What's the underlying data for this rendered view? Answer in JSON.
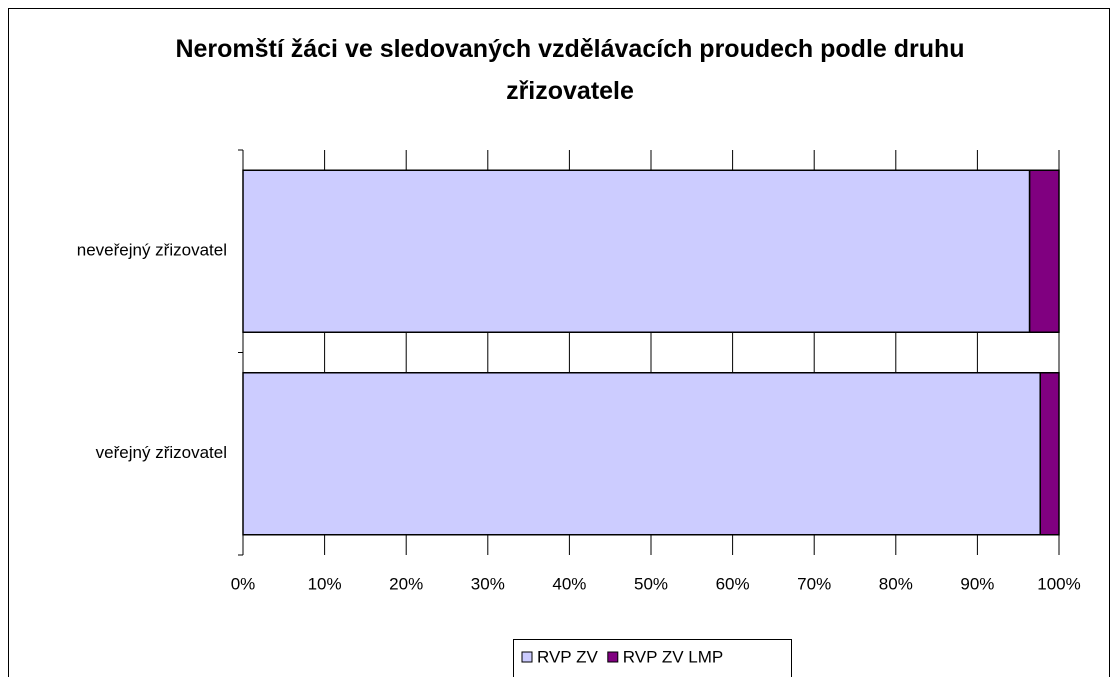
{
  "chart_data": {
    "type": "stacked-bar-horizontal",
    "title": "Neromští žáci ve sledovaných vzdělávacích proudech podle druhu zřizovatele",
    "categories": [
      "veřejný zřizovatel",
      "neveřejný zřizovatel"
    ],
    "series": [
      {
        "name": "RVP ZV",
        "color": "#ccccff",
        "values": [
          97.7,
          96.4
        ]
      },
      {
        "name": "RVP ZV LMP",
        "color": "#800080",
        "values": [
          2.3,
          3.6
        ]
      }
    ],
    "xlim": [
      0,
      100
    ],
    "xticks": [
      {
        "value": 0,
        "label": "0%"
      },
      {
        "value": 10,
        "label": "10%"
      },
      {
        "value": 20,
        "label": "20%"
      },
      {
        "value": 30,
        "label": "30%"
      },
      {
        "value": 40,
        "label": "40%"
      },
      {
        "value": 50,
        "label": "50%"
      },
      {
        "value": 60,
        "label": "60%"
      },
      {
        "value": 70,
        "label": "70%"
      },
      {
        "value": 80,
        "label": "80%"
      },
      {
        "value": 90,
        "label": "90%"
      },
      {
        "value": 100,
        "label": "100%"
      }
    ],
    "grid": true,
    "legend": "bottom"
  }
}
